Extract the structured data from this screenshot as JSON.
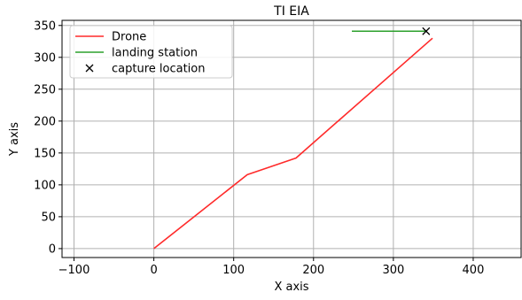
{
  "chart_data": {
    "type": "line",
    "title": "TI EIA",
    "xlabel": "X axis",
    "ylabel": "Y axis",
    "xlim": [
      -115,
      460
    ],
    "ylim": [
      -14,
      358
    ],
    "xticks": [
      -100,
      0,
      100,
      200,
      300,
      400
    ],
    "xtick_labels": [
      "−100",
      "0",
      "100",
      "200",
      "300",
      "400"
    ],
    "yticks": [
      0,
      50,
      100,
      150,
      200,
      250,
      300,
      350
    ],
    "ytick_labels": [
      "0",
      "50",
      "100",
      "150",
      "200",
      "250",
      "300",
      "350"
    ],
    "grid": true,
    "legend_position": "top-left",
    "series": [
      {
        "name": "Drone",
        "kind": "line",
        "color": "#ff2a2a",
        "x": [
          0,
          117,
          178,
          349
        ],
        "y": [
          0,
          116,
          142,
          330
        ]
      },
      {
        "name": "landing station",
        "kind": "line",
        "color": "#2ca02c",
        "x": [
          248,
          341
        ],
        "y": [
          341,
          341
        ]
      },
      {
        "name": "capture location",
        "kind": "marker",
        "marker": "x",
        "color": "#000000",
        "x": [
          341
        ],
        "y": [
          341
        ]
      }
    ]
  }
}
